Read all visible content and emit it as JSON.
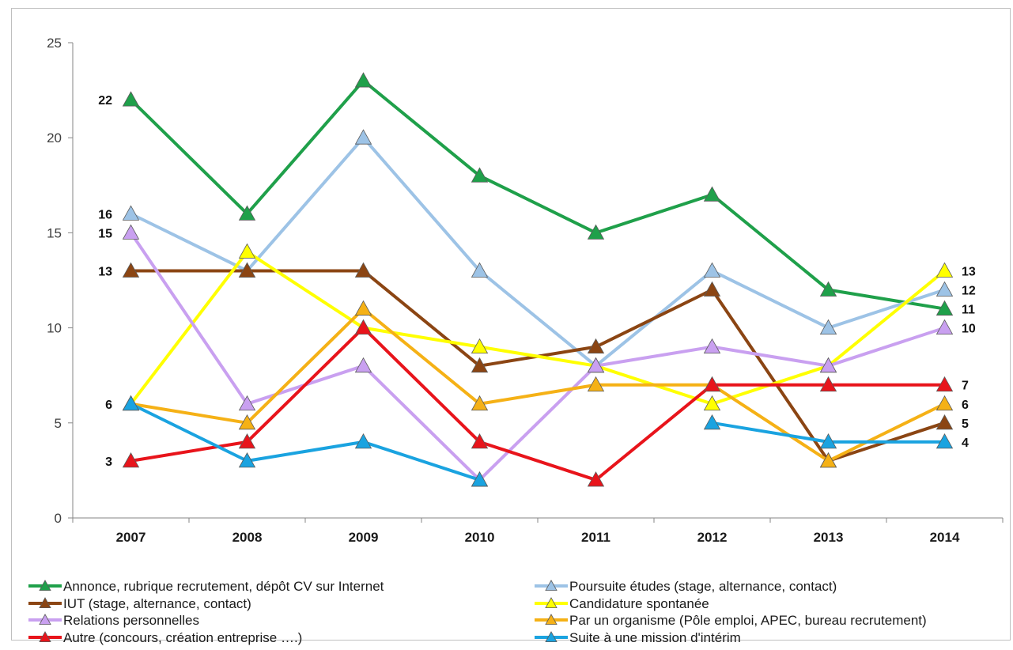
{
  "chart_data": {
    "type": "line",
    "title": "",
    "xlabel": "",
    "ylabel": "",
    "ylim": [
      0,
      25
    ],
    "yticks": [
      0,
      5,
      10,
      15,
      20,
      25
    ],
    "grid": false,
    "legend_position": "bottom",
    "categories": [
      "2007",
      "2008",
      "2009",
      "2010",
      "2011",
      "2012",
      "2013",
      "2014"
    ],
    "series": [
      {
        "name": "Annonce, rubrique recrutement, dépôt CV sur Internet",
        "color": "#1fa04a",
        "values": [
          22,
          16,
          23,
          18,
          15,
          17,
          12,
          11
        ]
      },
      {
        "name": "Poursuite études (stage, alternance, contact)",
        "color": "#9dc3e6",
        "values": [
          16,
          13,
          20,
          13,
          8,
          13,
          10,
          12
        ]
      },
      {
        "name": "IUT (stage, alternance, contact)",
        "color": "#8b4513",
        "values": [
          13,
          13,
          13,
          8,
          9,
          12,
          3,
          5
        ]
      },
      {
        "name": "Candidature spontanée",
        "color": "#ffff00",
        "values": [
          6,
          14,
          10,
          9,
          8,
          6,
          8,
          13
        ]
      },
      {
        "name": "Relations personnelles",
        "color": "#c9a0f0",
        "values": [
          15,
          6,
          8,
          2,
          8,
          9,
          8,
          10
        ]
      },
      {
        "name": "Par un organisme (Pôle emploi, APEC, bureau recrutement)",
        "color": "#f5b116",
        "values": [
          6,
          5,
          11,
          6,
          7,
          7,
          3,
          6
        ]
      },
      {
        "name": "Autre (concours, création entreprise ….)",
        "color": "#e8141b",
        "values": [
          3,
          4,
          10,
          4,
          2,
          7,
          7,
          7
        ]
      },
      {
        "name": "Suite à une mission d'intérim",
        "color": "#1aa3e0",
        "values": [
          6,
          3,
          4,
          2,
          null,
          5,
          4,
          4
        ]
      }
    ],
    "data_labels": {
      "start": [
        "22",
        "16",
        "15",
        "13",
        "6",
        "3"
      ],
      "end": [
        "13",
        "12",
        "11",
        "10",
        "7",
        "6",
        "5",
        "4"
      ]
    }
  }
}
